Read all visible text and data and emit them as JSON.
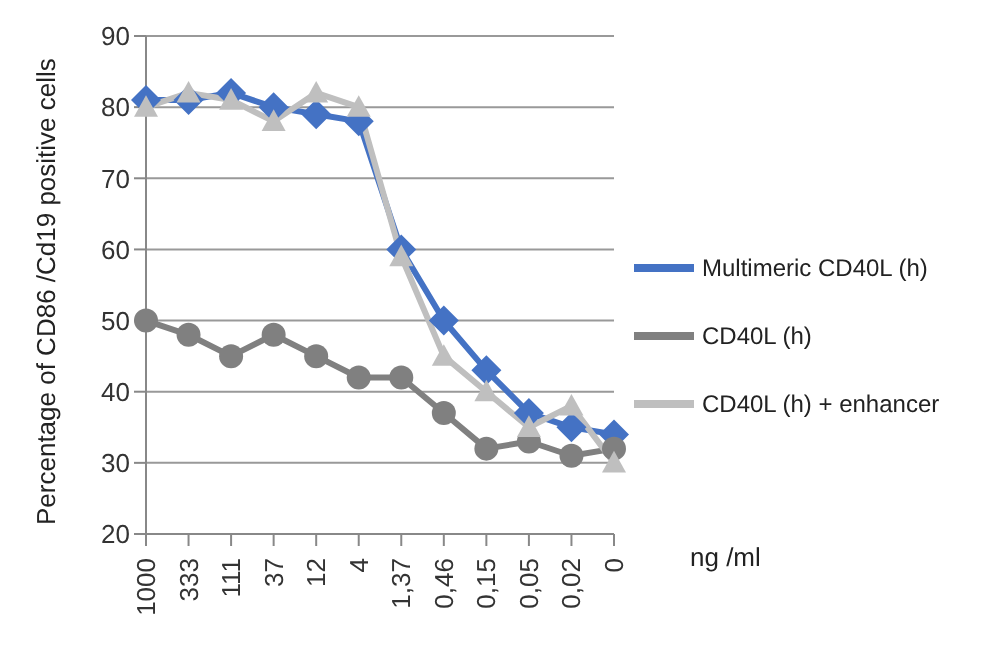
{
  "chart_data": {
    "type": "line",
    "ylabel": "Percentage of CD86 /Cd19 positive cells",
    "xlabel": "ng /ml",
    "categories": [
      "1000",
      "333",
      "111",
      "37",
      "12",
      "4",
      "1,37",
      "0,46",
      "0,15",
      "0,05",
      "0,02",
      "0"
    ],
    "series": [
      {
        "name": "Multimeric CD40L (h)",
        "color": "#4472c4",
        "marker": "diamond",
        "values": [
          81,
          81,
          82,
          80,
          79,
          78,
          60,
          50,
          43,
          37,
          35,
          34
        ]
      },
      {
        "name": "CD40L (h)",
        "color": "#808080",
        "marker": "circle",
        "values": [
          50,
          48,
          45,
          48,
          45,
          42,
          42,
          37,
          32,
          33,
          31,
          32
        ]
      },
      {
        "name": "CD40L (h) + enhancer",
        "color": "#bfbfbf",
        "marker": "triangle",
        "values": [
          80,
          82,
          81,
          78,
          82,
          80,
          59,
          45,
          40,
          35,
          38,
          30
        ]
      }
    ],
    "ylim": [
      20,
      90
    ],
    "yticks": [
      20,
      30,
      40,
      50,
      60,
      70,
      80,
      90
    ],
    "grid": "y",
    "legend": "right",
    "line_style": "solid"
  }
}
